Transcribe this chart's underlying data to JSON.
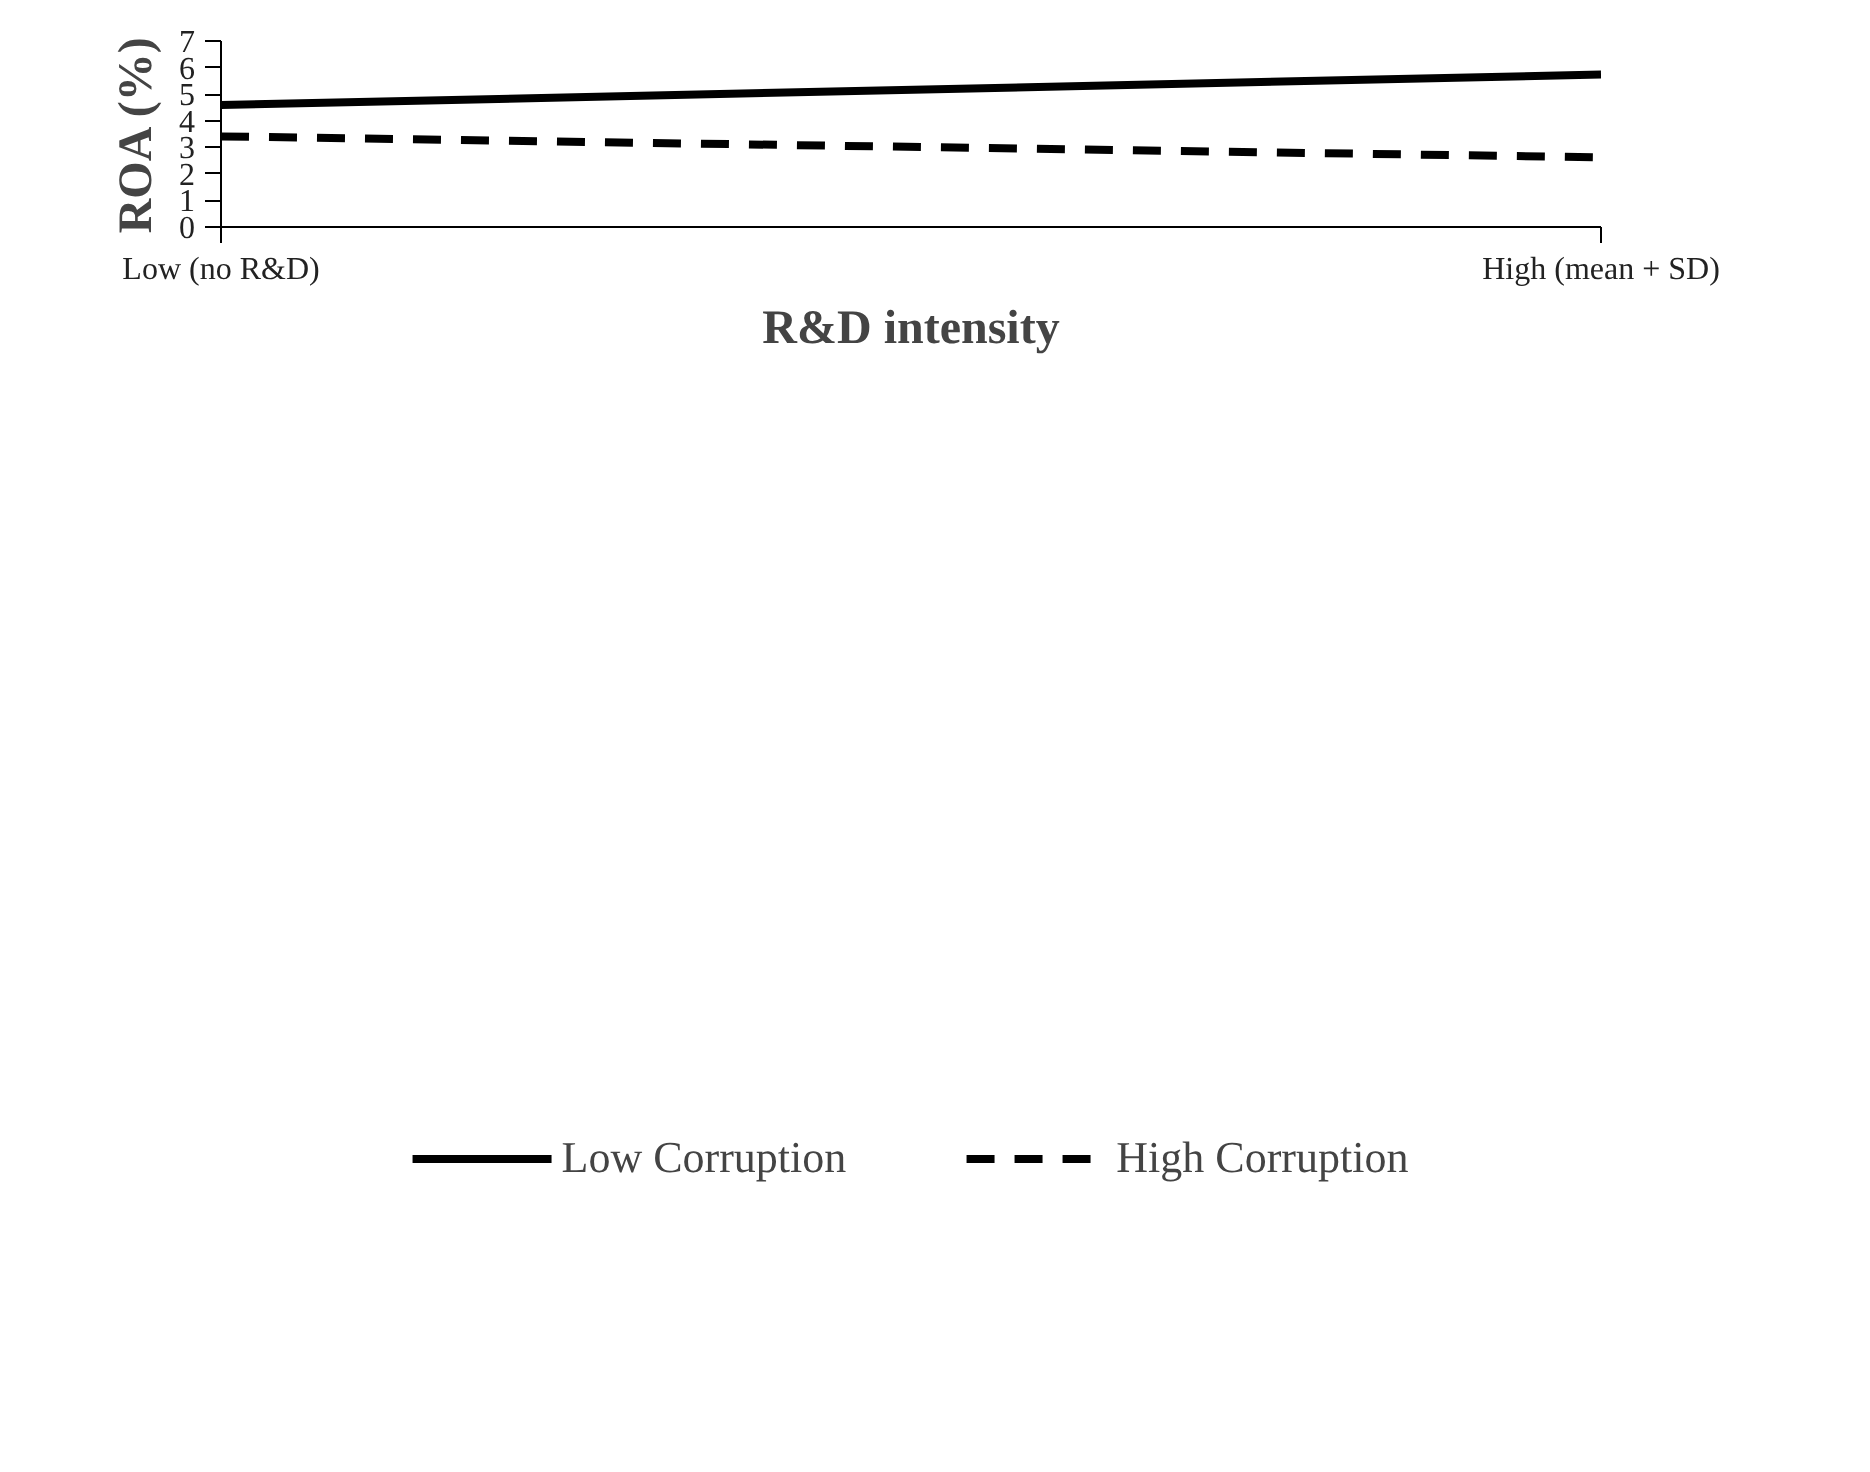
{
  "chart_data": {
    "type": "line",
    "xlabel": "R&D intensity",
    "ylabel": "ROA (%)",
    "categories": [
      "Low (no R&D)",
      "High (mean + SD)"
    ],
    "series": [
      {
        "name": "Low Corruption",
        "color": "#000000",
        "line_style": "solid",
        "values": [
          4.59,
          5.74
        ]
      },
      {
        "name": "High Corruption",
        "color": "#000000",
        "line_style": "dashed",
        "values": [
          3.41,
          2.62
        ]
      }
    ],
    "ylim": [
      0,
      7
    ],
    "yticks": [
      0,
      1,
      2,
      3,
      4,
      5,
      6,
      7
    ],
    "grid": false,
    "legend": "bottom",
    "marker": "none"
  }
}
